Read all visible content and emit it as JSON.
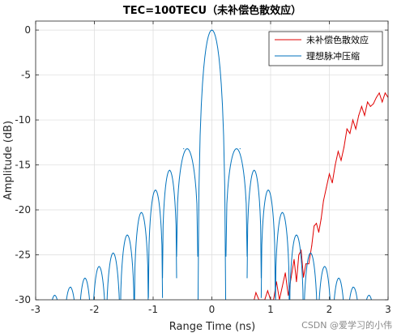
{
  "chart_data": {
    "type": "line",
    "title": "TEC=100TECU（未补偿色散效应）",
    "xlabel": "Range Time (ns)",
    "ylabel": "Amplitude (dB)",
    "xlim": [
      -3,
      3
    ],
    "ylim": [
      -30,
      1
    ],
    "xticks": [
      -3,
      -2,
      -1,
      0,
      1,
      2,
      3
    ],
    "xtick_labels": [
      "-3",
      "-2",
      "-1",
      "0",
      "1",
      "2",
      "3"
    ],
    "yticks": [
      0,
      -5,
      -10,
      -15,
      -20,
      -25,
      -30
    ],
    "ytick_labels": [
      "0",
      "-5",
      "-10",
      "-15",
      "-20",
      "-25",
      "-30"
    ],
    "grid": true,
    "legend_position": "top-right",
    "series": [
      {
        "name": "未补偿色散效应",
        "color": "#e00000",
        "x": [
          0.72,
          0.75,
          0.8,
          0.86,
          0.9,
          0.95,
          1.0,
          1.05,
          1.1,
          1.15,
          1.2,
          1.25,
          1.3,
          1.35,
          1.4,
          1.44,
          1.48,
          1.52,
          1.56,
          1.6,
          1.65,
          1.7,
          1.74,
          1.78,
          1.82,
          1.86,
          1.9,
          1.95,
          2.0,
          2.05,
          2.1,
          2.15,
          2.2,
          2.25,
          2.3,
          2.35,
          2.4,
          2.45,
          2.5,
          2.55,
          2.6,
          2.65,
          2.7,
          2.75,
          2.8,
          2.85,
          2.9,
          2.95,
          3.0
        ],
        "y": [
          -30,
          -29.2,
          -30,
          -30,
          -30,
          -29.0,
          -30,
          -30,
          -28.0,
          -30,
          -28.5,
          -27.0,
          -29.5,
          -27.5,
          -25.5,
          -28.0,
          -25.0,
          -24.5,
          -27.5,
          -26.0,
          -26.0,
          -24.0,
          -21.8,
          -21.5,
          -22.5,
          -21.0,
          -19.0,
          -17.5,
          -16.0,
          -17.0,
          -15.0,
          -13.5,
          -14.5,
          -13.0,
          -11.0,
          -11.5,
          -10.0,
          -11.0,
          -9.5,
          -8.5,
          -9.5,
          -8.0,
          -8.5,
          -8.2,
          -7.5,
          -7.0,
          -8.0,
          -7.0,
          -7.5
        ]
      },
      {
        "name": "理想脉冲压缩",
        "color": "#0072bd",
        "x": [
          -2.68,
          -2.4,
          -2.16,
          -1.92,
          -1.68,
          -1.44,
          -1.2,
          -0.96,
          -0.72,
          -0.48,
          0.0,
          0.48,
          0.72,
          0.96,
          1.2,
          1.44,
          1.68,
          1.92,
          2.16,
          2.4,
          2.68
        ],
        "y": [
          -29.5,
          -28.6,
          -27.6,
          -26.3,
          -24.8,
          -22.8,
          -20.3,
          -17.8,
          -15.6,
          -13.2,
          0,
          -13.2,
          -15.6,
          -17.8,
          -20.3,
          -22.8,
          -24.8,
          -26.3,
          -27.6,
          -28.6,
          -29.5
        ]
      }
    ]
  },
  "watermark": "CSDN @爱学习的小伟"
}
